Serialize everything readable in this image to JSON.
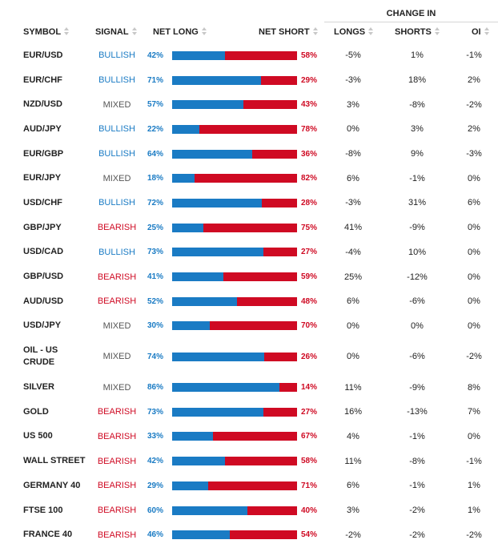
{
  "header": {
    "change_in": "CHANGE IN",
    "symbol": "SYMBOL",
    "signal": "SIGNAL",
    "net_long": "NET LONG",
    "net_short": "NET SHORT",
    "longs": "LONGS",
    "shorts": "SHORTS",
    "oi": "OI"
  },
  "colors": {
    "long": "#1a7bc4",
    "short": "#cf0a23",
    "bullish": "#1a7bc4",
    "bearish": "#cf0a23",
    "mixed": "#555555"
  },
  "rows": [
    {
      "symbol": "EUR/USD",
      "signal": "BULLISH",
      "net_long": "42%",
      "net_short": "58%",
      "long_pct": 42,
      "longs": "-5%",
      "shorts": "1%",
      "oi": "-1%"
    },
    {
      "symbol": "EUR/CHF",
      "signal": "BULLISH",
      "net_long": "71%",
      "net_short": "29%",
      "long_pct": 71,
      "longs": "-3%",
      "shorts": "18%",
      "oi": "2%"
    },
    {
      "symbol": "NZD/USD",
      "signal": "MIXED",
      "net_long": "57%",
      "net_short": "43%",
      "long_pct": 57,
      "longs": "3%",
      "shorts": "-8%",
      "oi": "-2%"
    },
    {
      "symbol": "AUD/JPY",
      "signal": "BULLISH",
      "net_long": "22%",
      "net_short": "78%",
      "long_pct": 22,
      "longs": "0%",
      "shorts": "3%",
      "oi": "2%"
    },
    {
      "symbol": "EUR/GBP",
      "signal": "BULLISH",
      "net_long": "64%",
      "net_short": "36%",
      "long_pct": 64,
      "longs": "-8%",
      "shorts": "9%",
      "oi": "-3%"
    },
    {
      "symbol": "EUR/JPY",
      "signal": "MIXED",
      "net_long": "18%",
      "net_short": "82%",
      "long_pct": 18,
      "longs": "6%",
      "shorts": "-1%",
      "oi": "0%"
    },
    {
      "symbol": "USD/CHF",
      "signal": "BULLISH",
      "net_long": "72%",
      "net_short": "28%",
      "long_pct": 72,
      "longs": "-3%",
      "shorts": "31%",
      "oi": "6%"
    },
    {
      "symbol": "GBP/JPY",
      "signal": "BEARISH",
      "net_long": "25%",
      "net_short": "75%",
      "long_pct": 25,
      "longs": "41%",
      "shorts": "-9%",
      "oi": "0%"
    },
    {
      "symbol": "USD/CAD",
      "signal": "BULLISH",
      "net_long": "73%",
      "net_short": "27%",
      "long_pct": 73,
      "longs": "-4%",
      "shorts": "10%",
      "oi": "0%"
    },
    {
      "symbol": "GBP/USD",
      "signal": "BEARISH",
      "net_long": "41%",
      "net_short": "59%",
      "long_pct": 41,
      "longs": "25%",
      "shorts": "-12%",
      "oi": "0%"
    },
    {
      "symbol": "AUD/USD",
      "signal": "BEARISH",
      "net_long": "52%",
      "net_short": "48%",
      "long_pct": 52,
      "longs": "6%",
      "shorts": "-6%",
      "oi": "0%"
    },
    {
      "symbol": "USD/JPY",
      "signal": "MIXED",
      "net_long": "30%",
      "net_short": "70%",
      "long_pct": 30,
      "longs": "0%",
      "shorts": "0%",
      "oi": "0%"
    },
    {
      "symbol": "OIL - US CRUDE",
      "signal": "MIXED",
      "net_long": "74%",
      "net_short": "26%",
      "long_pct": 74,
      "longs": "0%",
      "shorts": "-6%",
      "oi": "-2%"
    },
    {
      "symbol": "SILVER",
      "signal": "MIXED",
      "net_long": "86%",
      "net_short": "14%",
      "long_pct": 86,
      "longs": "11%",
      "shorts": "-9%",
      "oi": "8%"
    },
    {
      "symbol": "GOLD",
      "signal": "BEARISH",
      "net_long": "73%",
      "net_short": "27%",
      "long_pct": 73,
      "longs": "16%",
      "shorts": "-13%",
      "oi": "7%"
    },
    {
      "symbol": "US 500",
      "signal": "BEARISH",
      "net_long": "33%",
      "net_short": "67%",
      "long_pct": 33,
      "longs": "4%",
      "shorts": "-1%",
      "oi": "0%"
    },
    {
      "symbol": "WALL STREET",
      "signal": "BEARISH",
      "net_long": "42%",
      "net_short": "58%",
      "long_pct": 42,
      "longs": "11%",
      "shorts": "-8%",
      "oi": "-1%"
    },
    {
      "symbol": "GERMANY 40",
      "signal": "BEARISH",
      "net_long": "29%",
      "net_short": "71%",
      "long_pct": 29,
      "longs": "6%",
      "shorts": "-1%",
      "oi": "1%"
    },
    {
      "symbol": "FTSE 100",
      "signal": "BEARISH",
      "net_long": "60%",
      "net_short": "40%",
      "long_pct": 60,
      "longs": "3%",
      "shorts": "-2%",
      "oi": "1%"
    },
    {
      "symbol": "FRANCE 40",
      "signal": "BEARISH",
      "net_long": "46%",
      "net_short": "54%",
      "long_pct": 46,
      "longs": "-2%",
      "shorts": "-2%",
      "oi": "-2%"
    }
  ]
}
